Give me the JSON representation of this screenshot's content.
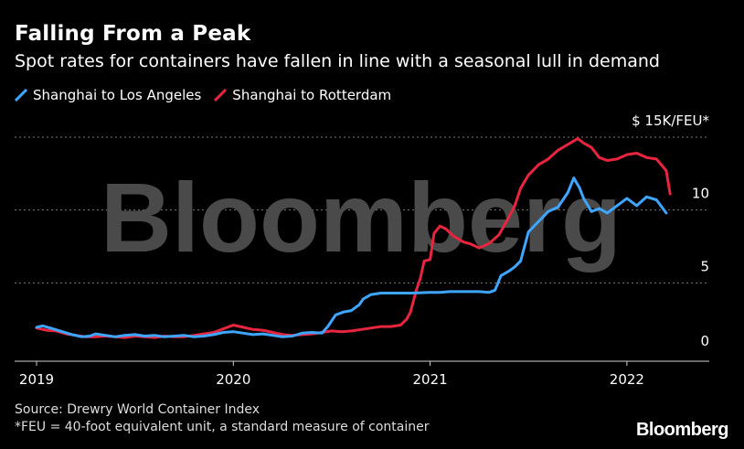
{
  "title": "Falling From a Peak",
  "subtitle": "Spot rates for containers have fallen in line with a seasonal lull in demand",
  "watermark": "Bloomberg",
  "source": "Source: Drewry World Container Index",
  "footnote": "*FEU = 40-foot equivalent unit, a standard measure of container",
  "brand": "Bloomberg",
  "colors": {
    "background": "#000000",
    "shanghai_la": "#3ea6ff",
    "shanghai_rotterdam": "#e8253f",
    "grid": "#7a7a7a"
  },
  "chart_data": {
    "type": "line",
    "title": "Falling From a Peak",
    "ylabel_unit": "$ 15K/FEU*",
    "ylim": [
      0,
      15
    ],
    "xlim": [
      2019.0,
      2022.4
    ],
    "y_ticks": [
      {
        "value": 0,
        "label": "0"
      },
      {
        "value": 5,
        "label": "5"
      },
      {
        "value": 10,
        "label": "10"
      },
      {
        "value": 15,
        "label": "$ 15K/FEU*"
      }
    ],
    "x_ticks": [
      {
        "value": 2019.0,
        "label": "2019"
      },
      {
        "value": 2020.0,
        "label": "2020"
      },
      {
        "value": 2021.0,
        "label": "2021"
      },
      {
        "value": 2022.0,
        "label": "2022"
      }
    ],
    "series": [
      {
        "name": "Shanghai to Los Angeles",
        "color": "#3ea6ff",
        "points": [
          [
            2019.0,
            1.95
          ],
          [
            2019.03,
            2.05
          ],
          [
            2019.07,
            1.9
          ],
          [
            2019.12,
            1.7
          ],
          [
            2019.18,
            1.45
          ],
          [
            2019.23,
            1.3
          ],
          [
            2019.27,
            1.35
          ],
          [
            2019.3,
            1.5
          ],
          [
            2019.35,
            1.4
          ],
          [
            2019.4,
            1.3
          ],
          [
            2019.45,
            1.4
          ],
          [
            2019.5,
            1.45
          ],
          [
            2019.55,
            1.35
          ],
          [
            2019.6,
            1.4
          ],
          [
            2019.65,
            1.3
          ],
          [
            2019.7,
            1.35
          ],
          [
            2019.75,
            1.4
          ],
          [
            2019.8,
            1.3
          ],
          [
            2019.85,
            1.35
          ],
          [
            2019.9,
            1.45
          ],
          [
            2019.95,
            1.6
          ],
          [
            2020.0,
            1.65
          ],
          [
            2020.05,
            1.55
          ],
          [
            2020.1,
            1.45
          ],
          [
            2020.15,
            1.5
          ],
          [
            2020.2,
            1.4
          ],
          [
            2020.25,
            1.3
          ],
          [
            2020.3,
            1.35
          ],
          [
            2020.35,
            1.55
          ],
          [
            2020.4,
            1.6
          ],
          [
            2020.45,
            1.55
          ],
          [
            2020.48,
            2.0
          ],
          [
            2020.52,
            2.8
          ],
          [
            2020.56,
            3.0
          ],
          [
            2020.6,
            3.1
          ],
          [
            2020.64,
            3.5
          ],
          [
            2020.66,
            3.9
          ],
          [
            2020.7,
            4.2
          ],
          [
            2020.75,
            4.3
          ],
          [
            2020.8,
            4.3
          ],
          [
            2020.9,
            4.3
          ],
          [
            2021.0,
            4.35
          ],
          [
            2021.05,
            4.35
          ],
          [
            2021.1,
            4.4
          ],
          [
            2021.2,
            4.4
          ],
          [
            2021.25,
            4.4
          ],
          [
            2021.3,
            4.35
          ],
          [
            2021.33,
            4.5
          ],
          [
            2021.36,
            5.5
          ],
          [
            2021.4,
            5.8
          ],
          [
            2021.43,
            6.1
          ],
          [
            2021.46,
            6.5
          ],
          [
            2021.48,
            7.5
          ],
          [
            2021.5,
            8.5
          ],
          [
            2021.55,
            9.2
          ],
          [
            2021.6,
            9.9
          ],
          [
            2021.65,
            10.2
          ],
          [
            2021.7,
            11.2
          ],
          [
            2021.73,
            12.2
          ],
          [
            2021.76,
            11.5
          ],
          [
            2021.78,
            10.8
          ],
          [
            2021.82,
            9.9
          ],
          [
            2021.86,
            10.1
          ],
          [
            2021.9,
            9.8
          ],
          [
            2021.95,
            10.3
          ],
          [
            2022.0,
            10.8
          ],
          [
            2022.05,
            10.3
          ],
          [
            2022.1,
            10.9
          ],
          [
            2022.15,
            10.7
          ],
          [
            2022.2,
            9.8
          ]
        ]
      },
      {
        "name": "Shanghai to Rotterdam",
        "color": "#e8253f",
        "points": [
          [
            2019.0,
            1.9
          ],
          [
            2019.05,
            1.75
          ],
          [
            2019.1,
            1.7
          ],
          [
            2019.15,
            1.5
          ],
          [
            2019.2,
            1.4
          ],
          [
            2019.25,
            1.3
          ],
          [
            2019.3,
            1.3
          ],
          [
            2019.35,
            1.35
          ],
          [
            2019.4,
            1.3
          ],
          [
            2019.45,
            1.25
          ],
          [
            2019.5,
            1.35
          ],
          [
            2019.55,
            1.3
          ],
          [
            2019.6,
            1.25
          ],
          [
            2019.65,
            1.35
          ],
          [
            2019.7,
            1.3
          ],
          [
            2019.75,
            1.3
          ],
          [
            2019.8,
            1.4
          ],
          [
            2019.85,
            1.5
          ],
          [
            2019.9,
            1.6
          ],
          [
            2019.95,
            1.85
          ],
          [
            2020.0,
            2.1
          ],
          [
            2020.05,
            1.95
          ],
          [
            2020.1,
            1.8
          ],
          [
            2020.15,
            1.75
          ],
          [
            2020.2,
            1.6
          ],
          [
            2020.25,
            1.45
          ],
          [
            2020.3,
            1.4
          ],
          [
            2020.35,
            1.45
          ],
          [
            2020.4,
            1.5
          ],
          [
            2020.45,
            1.6
          ],
          [
            2020.5,
            1.7
          ],
          [
            2020.55,
            1.65
          ],
          [
            2020.6,
            1.7
          ],
          [
            2020.65,
            1.8
          ],
          [
            2020.7,
            1.9
          ],
          [
            2020.75,
            2.0
          ],
          [
            2020.8,
            2.0
          ],
          [
            2020.85,
            2.1
          ],
          [
            2020.88,
            2.5
          ],
          [
            2020.9,
            3.0
          ],
          [
            2020.93,
            4.5
          ],
          [
            2020.95,
            5.3
          ],
          [
            2020.97,
            6.5
          ],
          [
            2021.0,
            6.6
          ],
          [
            2021.02,
            8.4
          ],
          [
            2021.05,
            8.9
          ],
          [
            2021.08,
            8.7
          ],
          [
            2021.12,
            8.2
          ],
          [
            2021.17,
            7.8
          ],
          [
            2021.2,
            7.7
          ],
          [
            2021.25,
            7.4
          ],
          [
            2021.3,
            7.7
          ],
          [
            2021.35,
            8.3
          ],
          [
            2021.4,
            9.5
          ],
          [
            2021.43,
            10.3
          ],
          [
            2021.46,
            11.5
          ],
          [
            2021.5,
            12.4
          ],
          [
            2021.55,
            13.1
          ],
          [
            2021.6,
            13.5
          ],
          [
            2021.65,
            14.1
          ],
          [
            2021.7,
            14.5
          ],
          [
            2021.75,
            14.9
          ],
          [
            2021.78,
            14.6
          ],
          [
            2021.82,
            14.3
          ],
          [
            2021.86,
            13.6
          ],
          [
            2021.9,
            13.4
          ],
          [
            2021.95,
            13.5
          ],
          [
            2022.0,
            13.8
          ],
          [
            2022.05,
            13.9
          ],
          [
            2022.1,
            13.6
          ],
          [
            2022.15,
            13.5
          ],
          [
            2022.2,
            12.7
          ],
          [
            2022.22,
            11.1
          ]
        ]
      }
    ]
  }
}
